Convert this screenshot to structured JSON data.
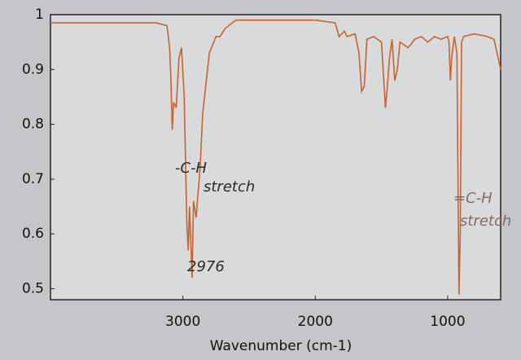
{
  "chart_data": {
    "type": "line",
    "x_label": "Wavenumber (cm-1)",
    "x": [
      4000,
      3800,
      3500,
      3200,
      3120,
      3100,
      3090,
      3080,
      3070,
      3050,
      3030,
      3010,
      2990,
      2970,
      2960,
      2950,
      2930,
      2920,
      2900,
      2870,
      2850,
      2800,
      2750,
      2720,
      2680,
      2600,
      2000,
      1850,
      1820,
      1780,
      1760,
      1700,
      1670,
      1650,
      1630,
      1610,
      1560,
      1500,
      1470,
      1455,
      1440,
      1420,
      1400,
      1380,
      1360,
      1300,
      1280,
      1250,
      1200,
      1150,
      1100,
      1050,
      1000,
      990,
      980,
      970,
      950,
      930,
      915,
      905,
      895,
      880,
      800,
      700,
      650,
      600
    ],
    "values": [
      0.985,
      0.985,
      0.985,
      0.985,
      0.98,
      0.94,
      0.88,
      0.79,
      0.84,
      0.83,
      0.92,
      0.94,
      0.85,
      0.62,
      0.57,
      0.65,
      0.52,
      0.66,
      0.63,
      0.72,
      0.82,
      0.93,
      0.96,
      0.96,
      0.975,
      0.99,
      0.99,
      0.985,
      0.96,
      0.97,
      0.96,
      0.965,
      0.93,
      0.86,
      0.87,
      0.955,
      0.96,
      0.95,
      0.83,
      0.87,
      0.92,
      0.955,
      0.88,
      0.9,
      0.95,
      0.94,
      0.945,
      0.955,
      0.96,
      0.95,
      0.96,
      0.955,
      0.96,
      0.95,
      0.88,
      0.92,
      0.96,
      0.93,
      0.49,
      0.6,
      0.95,
      0.96,
      0.965,
      0.96,
      0.955,
      0.9
    ],
    "color": "#c8622e",
    "xlim": [
      4000,
      600
    ],
    "xticks": [
      3000,
      2000,
      1000
    ],
    "ylim": [
      0.48,
      1
    ],
    "yticks": [
      0.5,
      0.6,
      0.7,
      0.8,
      0.9,
      1
    ],
    "annotations": [
      "-C-H",
      "stretch",
      "2976",
      "=C-H",
      "stretch"
    ]
  }
}
